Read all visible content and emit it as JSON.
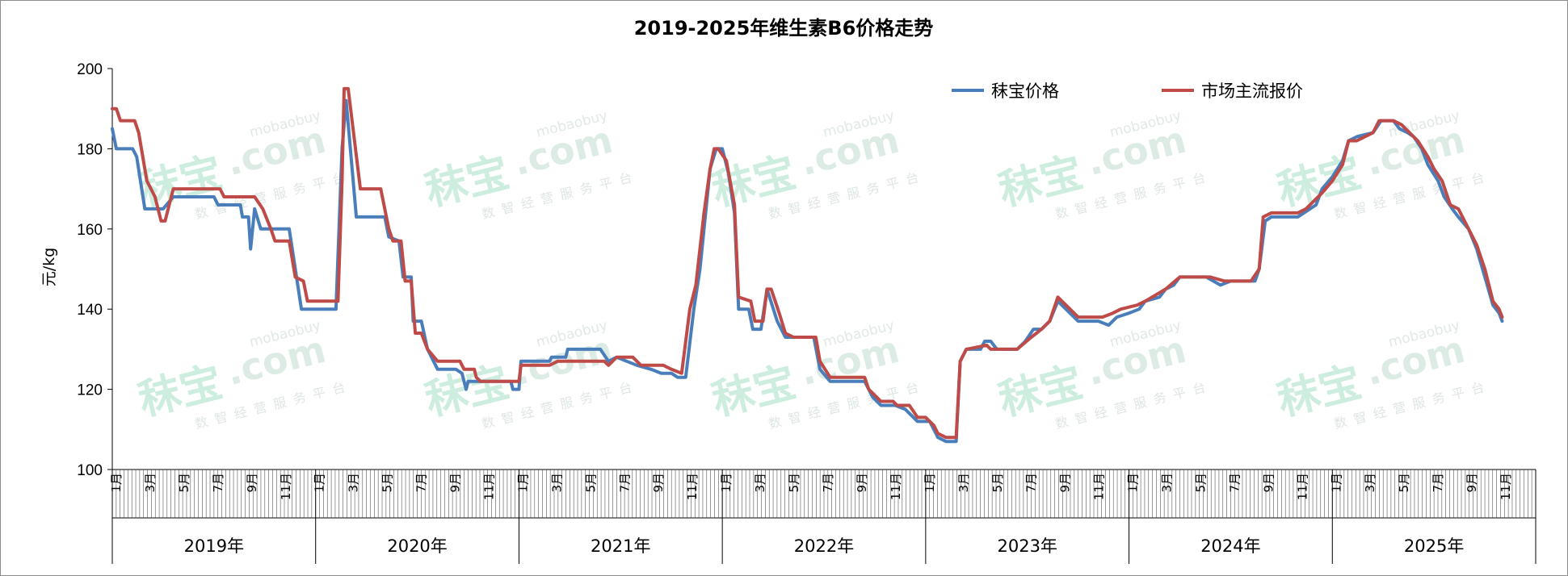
{
  "chart_data": {
    "type": "line",
    "title": "2019-2025年维生素B6价格走势",
    "ylabel": "元/kg",
    "ylim": [
      100,
      200
    ],
    "yticks": [
      100,
      120,
      140,
      160,
      180,
      200
    ],
    "grid": false,
    "legend_position": "top-right",
    "x_range": [
      2019.0,
      2026.0
    ],
    "month_labels": [
      "1月",
      "3月",
      "5月",
      "7月",
      "9月",
      "11月"
    ],
    "years": [
      "2019年",
      "2020年",
      "2021年",
      "2022年",
      "2023年",
      "2024年",
      "2025年"
    ],
    "series": [
      {
        "name": "秣宝价格",
        "color": "#4a7ebb",
        "points": [
          [
            2019.0,
            185
          ],
          [
            2019.02,
            180
          ],
          [
            2019.1,
            180
          ],
          [
            2019.12,
            178
          ],
          [
            2019.16,
            165
          ],
          [
            2019.25,
            165
          ],
          [
            2019.3,
            168
          ],
          [
            2019.5,
            168
          ],
          [
            2019.52,
            166
          ],
          [
            2019.63,
            166
          ],
          [
            2019.64,
            163
          ],
          [
            2019.67,
            163
          ],
          [
            2019.68,
            155
          ],
          [
            2019.7,
            165
          ],
          [
            2019.73,
            160
          ],
          [
            2019.87,
            160
          ],
          [
            2019.93,
            140
          ],
          [
            2020.1,
            140
          ],
          [
            2020.13,
            180
          ],
          [
            2020.15,
            192
          ],
          [
            2020.2,
            163
          ],
          [
            2020.34,
            163
          ],
          [
            2020.36,
            158
          ],
          [
            2020.41,
            157
          ],
          [
            2020.43,
            148
          ],
          [
            2020.47,
            148
          ],
          [
            2020.48,
            137
          ],
          [
            2020.52,
            137
          ],
          [
            2020.55,
            130
          ],
          [
            2020.6,
            125
          ],
          [
            2020.69,
            125
          ],
          [
            2020.72,
            124
          ],
          [
            2020.74,
            120
          ],
          [
            2020.75,
            122
          ],
          [
            2020.96,
            122
          ],
          [
            2020.97,
            120
          ],
          [
            2021.0,
            120
          ],
          [
            2021.01,
            127
          ],
          [
            2021.15,
            127
          ],
          [
            2021.16,
            128
          ],
          [
            2021.23,
            128
          ],
          [
            2021.24,
            130
          ],
          [
            2021.4,
            130
          ],
          [
            2021.44,
            127
          ],
          [
            2021.48,
            128
          ],
          [
            2021.58,
            126
          ],
          [
            2021.65,
            125
          ],
          [
            2021.7,
            124
          ],
          [
            2021.75,
            124
          ],
          [
            2021.78,
            123
          ],
          [
            2021.82,
            123
          ],
          [
            2021.86,
            140
          ],
          [
            2021.89,
            150
          ],
          [
            2021.94,
            175
          ],
          [
            2021.97,
            180
          ],
          [
            2022.0,
            180
          ],
          [
            2022.03,
            174
          ],
          [
            2022.06,
            164
          ],
          [
            2022.08,
            140
          ],
          [
            2022.13,
            140
          ],
          [
            2022.15,
            135
          ],
          [
            2022.19,
            135
          ],
          [
            2022.22,
            145
          ],
          [
            2022.27,
            137
          ],
          [
            2022.31,
            133
          ],
          [
            2022.45,
            133
          ],
          [
            2022.48,
            125
          ],
          [
            2022.53,
            122
          ],
          [
            2022.7,
            122
          ],
          [
            2022.74,
            118
          ],
          [
            2022.78,
            116
          ],
          [
            2022.85,
            116
          ],
          [
            2022.9,
            115
          ],
          [
            2022.96,
            112
          ],
          [
            2023.02,
            112
          ],
          [
            2023.06,
            108
          ],
          [
            2023.1,
            107
          ],
          [
            2023.15,
            107
          ],
          [
            2023.17,
            127
          ],
          [
            2023.2,
            130
          ],
          [
            2023.27,
            130
          ],
          [
            2023.29,
            132
          ],
          [
            2023.32,
            132
          ],
          [
            2023.35,
            130
          ],
          [
            2023.45,
            130
          ],
          [
            2023.49,
            132
          ],
          [
            2023.53,
            135
          ],
          [
            2023.57,
            135
          ],
          [
            2023.61,
            137
          ],
          [
            2023.65,
            142
          ],
          [
            2023.69,
            140
          ],
          [
            2023.75,
            137
          ],
          [
            2023.85,
            137
          ],
          [
            2023.9,
            136
          ],
          [
            2023.94,
            138
          ],
          [
            2024.0,
            139
          ],
          [
            2024.05,
            140
          ],
          [
            2024.08,
            142
          ],
          [
            2024.15,
            143
          ],
          [
            2024.18,
            145
          ],
          [
            2024.22,
            146
          ],
          [
            2024.25,
            148
          ],
          [
            2024.38,
            148
          ],
          [
            2024.45,
            146
          ],
          [
            2024.5,
            147
          ],
          [
            2024.62,
            147
          ],
          [
            2024.64,
            150
          ],
          [
            2024.67,
            162
          ],
          [
            2024.7,
            163
          ],
          [
            2024.83,
            163
          ],
          [
            2024.86,
            164
          ],
          [
            2024.92,
            166
          ],
          [
            2024.95,
            170
          ],
          [
            2025.0,
            173
          ],
          [
            2025.05,
            177
          ],
          [
            2025.08,
            182
          ],
          [
            2025.12,
            183
          ],
          [
            2025.2,
            184
          ],
          [
            2025.24,
            187
          ],
          [
            2025.3,
            187
          ],
          [
            2025.33,
            185
          ],
          [
            2025.37,
            184
          ],
          [
            2025.4,
            183
          ],
          [
            2025.44,
            180
          ],
          [
            2025.47,
            176
          ],
          [
            2025.52,
            172
          ],
          [
            2025.55,
            168
          ],
          [
            2025.59,
            165
          ],
          [
            2025.62,
            163
          ],
          [
            2025.67,
            160
          ],
          [
            2025.71,
            155
          ],
          [
            2025.75,
            148
          ],
          [
            2025.79,
            141
          ],
          [
            2025.82,
            139
          ],
          [
            2025.835,
            137
          ]
        ]
      },
      {
        "name": "市场主流报价",
        "color": "#be4b48",
        "points": [
          [
            2019.0,
            190
          ],
          [
            2019.02,
            190
          ],
          [
            2019.04,
            187
          ],
          [
            2019.11,
            187
          ],
          [
            2019.13,
            184
          ],
          [
            2019.17,
            172
          ],
          [
            2019.21,
            168
          ],
          [
            2019.24,
            162
          ],
          [
            2019.26,
            162
          ],
          [
            2019.3,
            170
          ],
          [
            2019.53,
            170
          ],
          [
            2019.55,
            168
          ],
          [
            2019.7,
            168
          ],
          [
            2019.74,
            165
          ],
          [
            2019.78,
            160
          ],
          [
            2019.8,
            157
          ],
          [
            2019.87,
            157
          ],
          [
            2019.9,
            148
          ],
          [
            2019.94,
            147
          ],
          [
            2019.96,
            142
          ],
          [
            2020.11,
            142
          ],
          [
            2020.13,
            172
          ],
          [
            2020.14,
            195
          ],
          [
            2020.16,
            195
          ],
          [
            2020.22,
            170
          ],
          [
            2020.32,
            170
          ],
          [
            2020.36,
            160
          ],
          [
            2020.38,
            157
          ],
          [
            2020.42,
            157
          ],
          [
            2020.44,
            147
          ],
          [
            2020.47,
            147
          ],
          [
            2020.49,
            134
          ],
          [
            2020.52,
            134
          ],
          [
            2020.55,
            130
          ],
          [
            2020.6,
            127
          ],
          [
            2020.71,
            127
          ],
          [
            2020.73,
            125
          ],
          [
            2020.78,
            125
          ],
          [
            2020.79,
            123
          ],
          [
            2020.81,
            122
          ],
          [
            2021.0,
            122
          ],
          [
            2021.01,
            126
          ],
          [
            2021.15,
            126
          ],
          [
            2021.19,
            127
          ],
          [
            2021.42,
            127
          ],
          [
            2021.44,
            126
          ],
          [
            2021.48,
            128
          ],
          [
            2021.56,
            128
          ],
          [
            2021.58,
            127
          ],
          [
            2021.6,
            126
          ],
          [
            2021.71,
            126
          ],
          [
            2021.75,
            125
          ],
          [
            2021.8,
            124
          ],
          [
            2021.84,
            140
          ],
          [
            2021.87,
            146
          ],
          [
            2021.91,
            164
          ],
          [
            2021.94,
            175
          ],
          [
            2021.96,
            180
          ],
          [
            2021.98,
            180
          ],
          [
            2022.02,
            177
          ],
          [
            2022.06,
            166
          ],
          [
            2022.08,
            143
          ],
          [
            2022.14,
            142
          ],
          [
            2022.16,
            137
          ],
          [
            2022.2,
            137
          ],
          [
            2022.22,
            145
          ],
          [
            2022.24,
            145
          ],
          [
            2022.28,
            139
          ],
          [
            2022.31,
            134
          ],
          [
            2022.35,
            133
          ],
          [
            2022.46,
            133
          ],
          [
            2022.48,
            127
          ],
          [
            2022.53,
            123
          ],
          [
            2022.7,
            123
          ],
          [
            2022.72,
            120
          ],
          [
            2022.76,
            118
          ],
          [
            2022.78,
            117
          ],
          [
            2022.84,
            117
          ],
          [
            2022.86,
            116
          ],
          [
            2022.92,
            116
          ],
          [
            2022.96,
            113
          ],
          [
            2023.0,
            113
          ],
          [
            2023.04,
            111
          ],
          [
            2023.06,
            109
          ],
          [
            2023.1,
            108
          ],
          [
            2023.15,
            108
          ],
          [
            2023.17,
            127
          ],
          [
            2023.2,
            130
          ],
          [
            2023.3,
            131
          ],
          [
            2023.32,
            130
          ],
          [
            2023.45,
            130
          ],
          [
            2023.52,
            133
          ],
          [
            2023.57,
            135
          ],
          [
            2023.61,
            137
          ],
          [
            2023.65,
            143
          ],
          [
            2023.67,
            142
          ],
          [
            2023.71,
            140
          ],
          [
            2023.75,
            138
          ],
          [
            2023.87,
            138
          ],
          [
            2023.92,
            139
          ],
          [
            2023.96,
            140
          ],
          [
            2024.04,
            141
          ],
          [
            2024.08,
            142
          ],
          [
            2024.18,
            145
          ],
          [
            2024.25,
            148
          ],
          [
            2024.4,
            148
          ],
          [
            2024.47,
            147
          ],
          [
            2024.6,
            147
          ],
          [
            2024.64,
            150
          ],
          [
            2024.66,
            163
          ],
          [
            2024.7,
            164
          ],
          [
            2024.83,
            164
          ],
          [
            2024.87,
            165
          ],
          [
            2024.95,
            169
          ],
          [
            2025.0,
            172
          ],
          [
            2025.05,
            176
          ],
          [
            2025.08,
            182
          ],
          [
            2025.12,
            182
          ],
          [
            2025.2,
            184
          ],
          [
            2025.23,
            187
          ],
          [
            2025.3,
            187
          ],
          [
            2025.34,
            186
          ],
          [
            2025.38,
            184
          ],
          [
            2025.42,
            182
          ],
          [
            2025.47,
            178
          ],
          [
            2025.5,
            175
          ],
          [
            2025.54,
            172
          ],
          [
            2025.58,
            166
          ],
          [
            2025.62,
            165
          ],
          [
            2025.66,
            161
          ],
          [
            2025.71,
            156
          ],
          [
            2025.75,
            150
          ],
          [
            2025.79,
            142
          ],
          [
            2025.82,
            140
          ],
          [
            2025.835,
            138
          ]
        ]
      }
    ]
  },
  "watermark": {
    "brand": "秣宝",
    "domain": ".com",
    "site": "mobaobuy",
    "slogan": "数智经营服务平台"
  }
}
